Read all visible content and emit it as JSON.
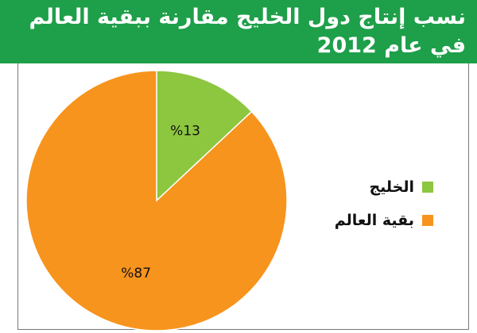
{
  "header": {
    "title_line1": "نسب إنتاج دول الخليج مقارنة ببقية العالم",
    "title_line2": "في عام 2012"
  },
  "chart_data": {
    "type": "pie",
    "title": "نسب إنتاج دول الخليج مقارنة ببقية العالم في عام 2012",
    "categories": [
      "الخليج",
      "بقية العالم"
    ],
    "values": [
      13,
      87
    ],
    "labels": [
      "%13",
      "%87"
    ],
    "colors": [
      "#8dc63f",
      "#f7941d"
    ],
    "legend_position": "right"
  },
  "colors": {
    "header_bg": "#1e9f4a"
  }
}
